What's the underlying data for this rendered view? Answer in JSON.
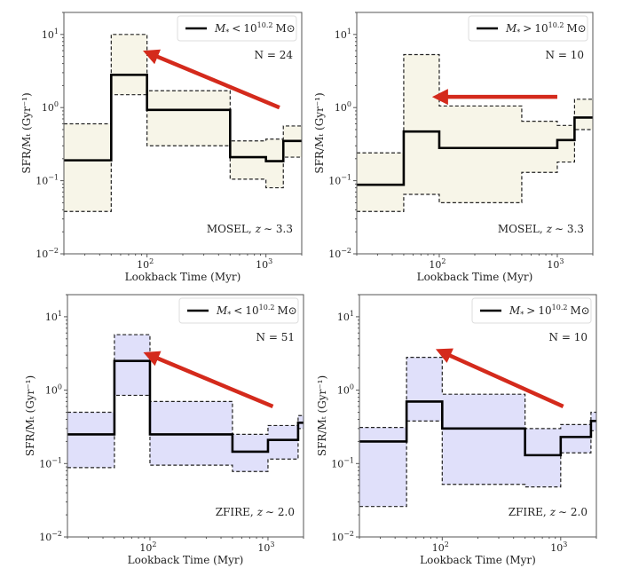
{
  "chart_data": [
    {
      "type": "line",
      "style": "step with dashed percentile band",
      "xlabel": "Lookback Time (Myr)",
      "ylabel": "SFR/Mₜ (Gyr⁻¹)",
      "xscale": "log",
      "yscale": "log",
      "xlim": [
        20,
        2000
      ],
      "ylim": [
        0.01,
        20
      ],
      "xticks": [
        {
          "base": "10",
          "exp": "2",
          "value": 100
        },
        {
          "base": "10",
          "exp": "3",
          "value": 1000
        }
      ],
      "yticks": [
        {
          "base": "10",
          "exp": "−2",
          "value": 0.01
        },
        {
          "base": "10",
          "exp": "−1",
          "value": 0.1
        },
        {
          "base": "10",
          "exp": "0",
          "value": 1
        },
        {
          "base": "10",
          "exp": "1",
          "value": 10
        }
      ],
      "legend": {
        "placement": "top-right",
        "symbol": "M",
        "sub": "*",
        "op": "<",
        "base": "10",
        "exp": "10.2",
        "unit": "M⊙"
      },
      "count_label": "N = 24",
      "sample_label": "MOSEL,",
      "redshift_label": "z",
      "redshift_value": "∼ 3.3",
      "fill_color": "#f7f5e8",
      "bin_edges": [
        20,
        50,
        100,
        500,
        1000,
        1400,
        2000
      ],
      "median": [
        0.19,
        2.8,
        0.93,
        0.21,
        0.185,
        0.35
      ],
      "upper": [
        0.6,
        10,
        1.7,
        0.35,
        0.37,
        0.56
      ],
      "lower": [
        0.038,
        1.5,
        0.3,
        0.105,
        0.08,
        0.21
      ],
      "arrow": {
        "from": [
          1300,
          1.0
        ],
        "to": [
          105,
          5.5
        ],
        "color": "#d42a1c"
      }
    },
    {
      "type": "line",
      "style": "step with dashed percentile band",
      "xlabel": "Lookback Time (Myr)",
      "ylabel": "SFR/Mₜ (Gyr⁻¹)",
      "xscale": "log",
      "yscale": "log",
      "xlim": [
        20,
        2000
      ],
      "ylim": [
        0.01,
        20
      ],
      "xticks": [
        {
          "base": "10",
          "exp": "2",
          "value": 100
        },
        {
          "base": "10",
          "exp": "3",
          "value": 1000
        }
      ],
      "yticks": [
        {
          "base": "10",
          "exp": "−2",
          "value": 0.01
        },
        {
          "base": "10",
          "exp": "−1",
          "value": 0.1
        },
        {
          "base": "10",
          "exp": "0",
          "value": 1
        },
        {
          "base": "10",
          "exp": "1",
          "value": 10
        }
      ],
      "legend": {
        "placement": "top-right",
        "symbol": "M",
        "sub": "*",
        "op": ">",
        "base": "10",
        "exp": "10.2",
        "unit": "M⊙"
      },
      "count_label": "N = 10",
      "sample_label": "MOSEL,",
      "redshift_label": "z",
      "redshift_value": "∼ 3.3",
      "fill_color": "#f7f5e8",
      "bin_edges": [
        20,
        50,
        100,
        500,
        1000,
        1400,
        2000
      ],
      "median": [
        0.088,
        0.47,
        0.28,
        0.28,
        0.36,
        0.73
      ],
      "upper": [
        0.24,
        5.3,
        1.05,
        0.65,
        0.57,
        1.3
      ],
      "lower": [
        0.038,
        0.065,
        0.05,
        0.13,
        0.18,
        0.5
      ],
      "arrow": {
        "from": [
          1000,
          1.4
        ],
        "to": [
          100,
          1.4
        ],
        "color": "#d42a1c"
      }
    },
    {
      "type": "line",
      "style": "step with dashed percentile band",
      "xlabel": "Lookback Time (Myr)",
      "ylabel": "SFR/Mₜ (Gyr⁻¹)",
      "xscale": "log",
      "yscale": "log",
      "xlim": [
        20,
        2000
      ],
      "ylim": [
        0.01,
        20
      ],
      "xticks": [
        {
          "base": "10",
          "exp": "2",
          "value": 100
        },
        {
          "base": "10",
          "exp": "3",
          "value": 1000
        }
      ],
      "yticks": [
        {
          "base": "10",
          "exp": "−2",
          "value": 0.01
        },
        {
          "base": "10",
          "exp": "−1",
          "value": 0.1
        },
        {
          "base": "10",
          "exp": "0",
          "value": 1
        },
        {
          "base": "10",
          "exp": "1",
          "value": 10
        }
      ],
      "legend": {
        "placement": "top-right",
        "symbol": "M",
        "sub": "*",
        "op": "<",
        "base": "10",
        "exp": "10.2",
        "unit": "M⊙"
      },
      "count_label": "N = 51",
      "sample_label": "ZFIRE,",
      "redshift_label": "z",
      "redshift_value": "∼ 2.0",
      "fill_color": "#e0e0fa",
      "bin_edges": [
        20,
        50,
        100,
        500,
        1000,
        1800,
        2000
      ],
      "median": [
        0.25,
        2.5,
        0.25,
        0.145,
        0.21,
        0.36
      ],
      "upper": [
        0.5,
        5.7,
        0.7,
        0.25,
        0.33,
        0.45
      ],
      "lower": [
        0.088,
        0.85,
        0.095,
        0.078,
        0.115,
        0.3
      ],
      "arrow": {
        "from": [
          1100,
          0.6
        ],
        "to": [
          100,
          3.0
        ],
        "color": "#d42a1c"
      }
    },
    {
      "type": "line",
      "style": "step with dashed percentile band",
      "xlabel": "Lookback Time (Myr)",
      "ylabel": "SFR/Mₜ (Gyr⁻¹)",
      "xscale": "log",
      "yscale": "log",
      "xlim": [
        20,
        2000
      ],
      "ylim": [
        0.01,
        20
      ],
      "xticks": [
        {
          "base": "10",
          "exp": "2",
          "value": 100
        },
        {
          "base": "10",
          "exp": "3",
          "value": 1000
        }
      ],
      "yticks": [
        {
          "base": "10",
          "exp": "−2",
          "value": 0.01
        },
        {
          "base": "10",
          "exp": "−1",
          "value": 0.1
        },
        {
          "base": "10",
          "exp": "0",
          "value": 1
        },
        {
          "base": "10",
          "exp": "1",
          "value": 10
        }
      ],
      "legend": {
        "placement": "top-right",
        "symbol": "M",
        "sub": "*",
        "op": ">",
        "base": "10",
        "exp": "10.2",
        "unit": "M⊙"
      },
      "count_label": "N = 10",
      "sample_label": "ZFIRE,",
      "redshift_label": "z",
      "redshift_value": "∼ 2.0",
      "fill_color": "#e0e0fa",
      "bin_edges": [
        20,
        50,
        100,
        500,
        1000,
        1800,
        2000
      ],
      "median": [
        0.2,
        0.7,
        0.3,
        0.13,
        0.23,
        0.38
      ],
      "upper": [
        0.31,
        2.8,
        0.88,
        0.3,
        0.34,
        0.5
      ],
      "lower": [
        0.026,
        0.38,
        0.052,
        0.048,
        0.14,
        0.28
      ],
      "arrow": {
        "from": [
          1050,
          0.6
        ],
        "to": [
          100,
          3.3
        ],
        "color": "#d42a1c"
      }
    }
  ]
}
